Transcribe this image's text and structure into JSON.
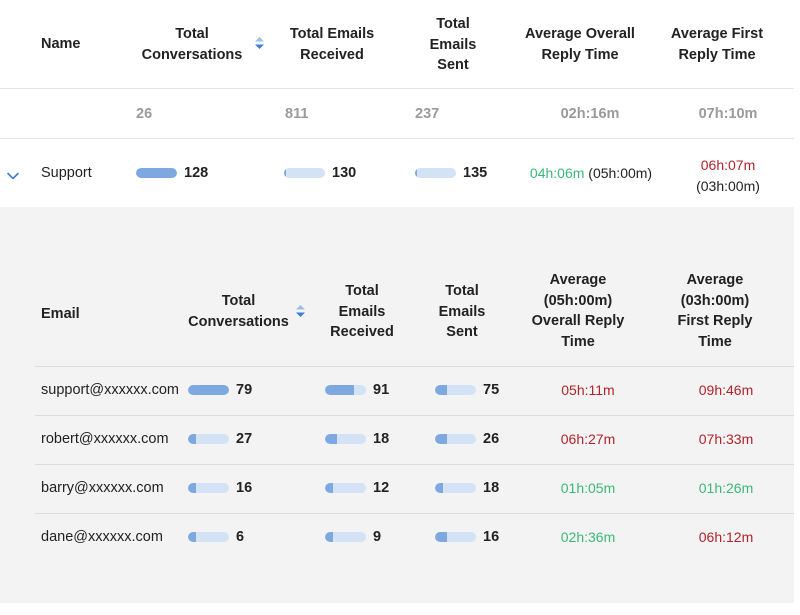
{
  "colors": {
    "accent": "#7ea9e0",
    "bar_track": "#d3e2f5",
    "good_time": "#3cb878",
    "bad_time": "#b0242c",
    "totals_text": "#9a9a9a",
    "panel_bg": "#f3f3f3"
  },
  "top_table": {
    "headers": {
      "name": "Name",
      "total_conversations": [
        "Total",
        "Conversations"
      ],
      "total_emails_received": [
        "Total Emails",
        "Received"
      ],
      "total_emails_sent": [
        "Total",
        "Emails",
        "Sent"
      ],
      "avg_overall_reply": [
        "Average Overall",
        "Reply Time"
      ],
      "avg_first_reply": [
        "Average First",
        "Reply Time"
      ]
    },
    "sort_icon": "sort-arrows-icon",
    "totals": {
      "total_conversations": "26",
      "total_emails_received": "811",
      "total_emails_sent": "237",
      "avg_overall_reply": "02h:16m",
      "avg_first_reply": "07h:10m"
    },
    "group_row": {
      "expand_icon": "chevron-down-icon",
      "name": "Support",
      "total_conversations": {
        "value": "128",
        "fill": 1.0
      },
      "total_emails_received": {
        "value": "130",
        "fill": 0.05
      },
      "total_emails_sent": {
        "value": "135",
        "fill": 0.05
      },
      "avg_overall_reply": {
        "value": "04h:06m",
        "target": "(05h:00m)",
        "status": "good"
      },
      "avg_first_reply": {
        "value": "06h:07m",
        "target": "(03h:00m)",
        "status": "bad"
      }
    }
  },
  "detail_table": {
    "headers": {
      "email": "Email",
      "total_conversations": [
        "Total",
        "Conversations"
      ],
      "total_emails_received": [
        "Total",
        "Emails",
        "Received"
      ],
      "total_emails_sent": [
        "Total",
        "Emails",
        "Sent"
      ],
      "avg_overall_reply": [
        "Average",
        "(05h:00m)",
        "Overall Reply",
        "Time"
      ],
      "avg_first_reply": [
        "Average",
        "(03h:00m)",
        "First Reply",
        "Time"
      ]
    },
    "sort_icon": "sort-arrows-icon",
    "rows": [
      {
        "email": "support@xxxxxx.com",
        "conversations": "79",
        "conv_fill": 1.0,
        "received": "91",
        "recv_fill": 0.7,
        "sent": "75",
        "sent_fill": 0.3,
        "overall": "05h:11m",
        "overall_status": "bad",
        "first": "09h:46m",
        "first_status": "bad"
      },
      {
        "email": "robert@xxxxxx.com",
        "conversations": "27",
        "conv_fill": 0.2,
        "received": "18",
        "recv_fill": 0.3,
        "sent": "26",
        "sent_fill": 0.3,
        "overall": "06h:27m",
        "overall_status": "bad",
        "first": "07h:33m",
        "first_status": "bad"
      },
      {
        "email": "barry@xxxxxx.com",
        "conversations": "16",
        "conv_fill": 0.2,
        "received": "12",
        "recv_fill": 0.2,
        "sent": "18",
        "sent_fill": 0.2,
        "overall": "01h:05m",
        "overall_status": "good",
        "first": "01h:26m",
        "first_status": "good"
      },
      {
        "email": "dane@xxxxxx.com",
        "conversations": "6",
        "conv_fill": 0.2,
        "received": "9",
        "recv_fill": 0.2,
        "sent": "16",
        "sent_fill": 0.3,
        "overall": "02h:36m",
        "overall_status": "good",
        "first": "06h:12m",
        "first_status": "bad"
      }
    ]
  }
}
